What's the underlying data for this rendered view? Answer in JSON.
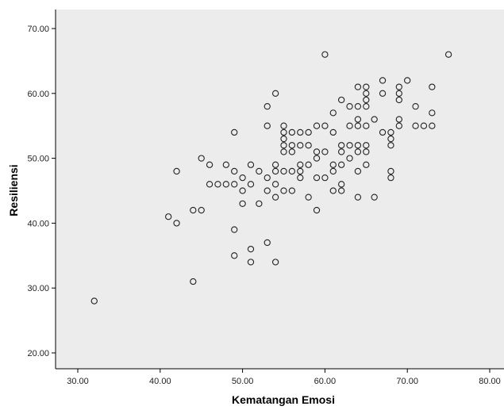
{
  "chart_data": {
    "type": "scatter",
    "title": "",
    "xlabel": "Kematangan Emosi",
    "ylabel": "Resiliensi",
    "xlim": [
      28,
      82
    ],
    "ylim": [
      18,
      73
    ],
    "xticks": [
      "30.00",
      "40.00",
      "50.00",
      "60.00",
      "70.00",
      "80.00"
    ],
    "xtick_values": [
      30,
      40,
      50,
      60,
      70,
      80
    ],
    "yticks": [
      "20.00",
      "30.00",
      "40.00",
      "50.00",
      "60.00",
      "70.00"
    ],
    "ytick_values": [
      20,
      30,
      40,
      50,
      60,
      70
    ],
    "grid": false,
    "plot_background": "#ececec",
    "marker_color": "#222222",
    "points": [
      [
        32,
        28
      ],
      [
        41,
        41
      ],
      [
        42,
        40
      ],
      [
        42,
        48
      ],
      [
        44,
        31
      ],
      [
        44,
        42
      ],
      [
        45,
        42
      ],
      [
        45,
        50
      ],
      [
        46,
        46
      ],
      [
        46,
        49
      ],
      [
        47,
        46
      ],
      [
        48,
        46
      ],
      [
        48,
        49
      ],
      [
        49,
        35
      ],
      [
        49,
        39
      ],
      [
        49,
        46
      ],
      [
        49,
        48
      ],
      [
        49,
        54
      ],
      [
        50,
        43
      ],
      [
        50,
        45
      ],
      [
        50,
        47
      ],
      [
        51,
        34
      ],
      [
        51,
        36
      ],
      [
        51,
        46
      ],
      [
        51,
        49
      ],
      [
        52,
        43
      ],
      [
        52,
        48
      ],
      [
        53,
        37
      ],
      [
        53,
        45
      ],
      [
        53,
        47
      ],
      [
        53,
        55
      ],
      [
        53,
        58
      ],
      [
        54,
        34
      ],
      [
        54,
        44
      ],
      [
        54,
        46
      ],
      [
        54,
        48
      ],
      [
        54,
        49
      ],
      [
        54,
        60
      ],
      [
        55,
        45
      ],
      [
        55,
        48
      ],
      [
        55,
        51
      ],
      [
        55,
        52
      ],
      [
        55,
        53
      ],
      [
        55,
        54
      ],
      [
        55,
        55
      ],
      [
        56,
        45
      ],
      [
        56,
        48
      ],
      [
        56,
        51
      ],
      [
        56,
        52
      ],
      [
        56,
        54
      ],
      [
        57,
        47
      ],
      [
        57,
        48
      ],
      [
        57,
        49
      ],
      [
        57,
        52
      ],
      [
        57,
        54
      ],
      [
        58,
        44
      ],
      [
        58,
        49
      ],
      [
        58,
        52
      ],
      [
        58,
        54
      ],
      [
        59,
        42
      ],
      [
        59,
        47
      ],
      [
        59,
        50
      ],
      [
        59,
        51
      ],
      [
        59,
        55
      ],
      [
        60,
        47
      ],
      [
        60,
        51
      ],
      [
        60,
        55
      ],
      [
        60,
        66
      ],
      [
        61,
        45
      ],
      [
        61,
        48
      ],
      [
        61,
        49
      ],
      [
        61,
        54
      ],
      [
        61,
        57
      ],
      [
        62,
        45
      ],
      [
        62,
        46
      ],
      [
        62,
        49
      ],
      [
        62,
        51
      ],
      [
        62,
        52
      ],
      [
        62,
        59
      ],
      [
        63,
        50
      ],
      [
        63,
        52
      ],
      [
        63,
        55
      ],
      [
        63,
        58
      ],
      [
        64,
        44
      ],
      [
        64,
        48
      ],
      [
        64,
        51
      ],
      [
        64,
        52
      ],
      [
        64,
        55
      ],
      [
        64,
        56
      ],
      [
        64,
        58
      ],
      [
        64,
        61
      ],
      [
        65,
        49
      ],
      [
        65,
        51
      ],
      [
        65,
        52
      ],
      [
        65,
        55
      ],
      [
        65,
        58
      ],
      [
        65,
        59
      ],
      [
        65,
        60
      ],
      [
        65,
        61
      ],
      [
        66,
        44
      ],
      [
        66,
        56
      ],
      [
        67,
        54
      ],
      [
        67,
        60
      ],
      [
        67,
        62
      ],
      [
        68,
        47
      ],
      [
        68,
        48
      ],
      [
        68,
        52
      ],
      [
        68,
        53
      ],
      [
        68,
        54
      ],
      [
        69,
        55
      ],
      [
        69,
        56
      ],
      [
        69,
        59
      ],
      [
        69,
        60
      ],
      [
        69,
        61
      ],
      [
        70,
        62
      ],
      [
        71,
        55
      ],
      [
        71,
        58
      ],
      [
        72,
        55
      ],
      [
        73,
        55
      ],
      [
        73,
        57
      ],
      [
        73,
        61
      ],
      [
        75,
        66
      ]
    ]
  }
}
